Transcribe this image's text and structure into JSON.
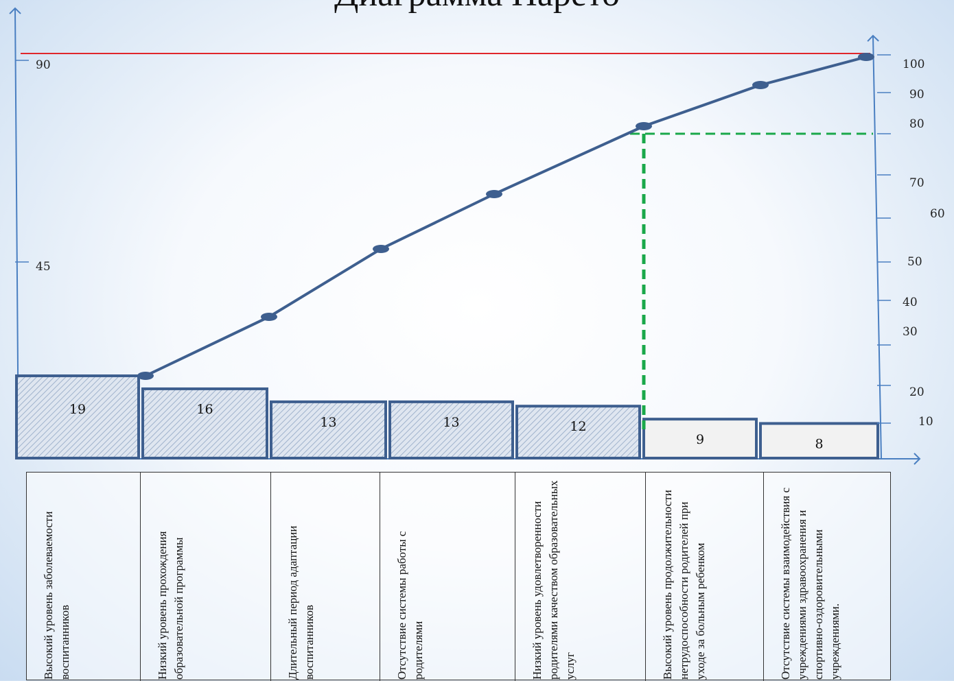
{
  "title": "Диаграмма Парето",
  "chart_data": {
    "type": "bar",
    "categories": [
      "Высокий уровень заболеваемости воспитанников",
      "Низкий уровень прохождения образовательной программы",
      "Длительный период адаптации воспитанников",
      "Отсутствие системы работы с родителями",
      "Низкий уровень удовлетворенности родителями качеством образовательных услуг",
      "Высокий уровень продолжительности нетрудоспособности родителей при уходе за больным ребенком",
      "Отсутствие системы взаимодействия с учреждениями здравоохранения и спортивно-оздоровительными учреждениями."
    ],
    "series": [
      {
        "values": [
          19,
          16,
          13,
          13,
          12,
          9,
          8
        ]
      },
      {
        "values": [
          21.1,
          38.9,
          53.3,
          67.8,
          81.1,
          91.1,
          100
        ]
      }
    ],
    "bar_labels": [
      "19",
      "16",
      "13",
      "13",
      "12",
      "9",
      "8"
    ],
    "left_axis": {
      "ticks": [
        "90",
        "45"
      ],
      "values": [
        90,
        45
      ],
      "ylim": [
        0,
        90
      ]
    },
    "right_axis": {
      "ticks": [
        "100",
        "90",
        "80",
        "70",
        "60",
        "50",
        "40",
        "30",
        "20",
        "10"
      ],
      "values": [
        100,
        90,
        80,
        70,
        60,
        50,
        40,
        30,
        20,
        10
      ],
      "ylim": [
        0,
        100
      ]
    },
    "reference_line": 80,
    "colors": {
      "line": "#3e5f8f",
      "bar_border": "#3e5f8f",
      "red_line": "#e0262b",
      "dashed": "#1aa84a",
      "axis": "#4a7fc1",
      "hatch_bar_fill": "#d9e2ee",
      "plain_bar_fill": "#f2f2f2"
    }
  }
}
